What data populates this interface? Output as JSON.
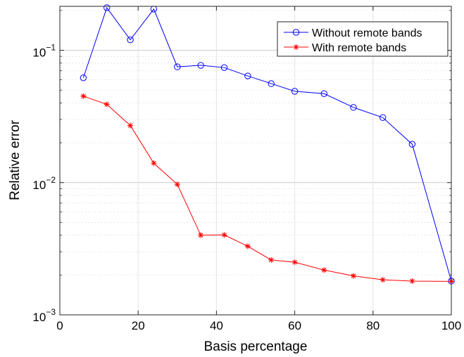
{
  "chart_data": {
    "type": "line",
    "xlabel": "Basis percentage",
    "ylabel": "Relative error",
    "xlim": [
      0,
      100
    ],
    "ylim": [
      0.001,
      0.215
    ],
    "yscale": "log",
    "grid": true,
    "minor_grid": true,
    "legend_position": "top-right",
    "x_ticks": [
      0,
      20,
      40,
      60,
      80,
      100
    ],
    "x_tick_labels": [
      "0",
      "20",
      "40",
      "60",
      "80",
      "100"
    ],
    "y_ticks": [
      {
        "value": 0.1,
        "base": "10",
        "exp": "−1"
      },
      {
        "value": 0.01,
        "base": "10",
        "exp": "−2"
      },
      {
        "value": 0.001,
        "base": "10",
        "exp": "−3"
      }
    ],
    "series": [
      {
        "name": "Without remote bands",
        "color": "#0000ff",
        "marker": "circle",
        "x": [
          6,
          12,
          18,
          24,
          30,
          36,
          42,
          48,
          54,
          60,
          67.5,
          75,
          82.5,
          90,
          100
        ],
        "y": [
          0.062,
          0.21,
          0.12,
          0.205,
          0.075,
          0.077,
          0.074,
          0.064,
          0.056,
          0.049,
          0.047,
          0.037,
          0.031,
          0.0195,
          0.0018
        ]
      },
      {
        "name": "With remote bands",
        "color": "#ff0000",
        "marker": "asterisk",
        "x": [
          6,
          12,
          18,
          24,
          30,
          36,
          42,
          48,
          54,
          60,
          67.5,
          75,
          82.5,
          90,
          100
        ],
        "y": [
          0.045,
          0.039,
          0.027,
          0.014,
          0.0097,
          0.004,
          0.00402,
          0.0033,
          0.0026,
          0.0025,
          0.00218,
          0.00197,
          0.00184,
          0.0018,
          0.00179
        ]
      }
    ]
  }
}
